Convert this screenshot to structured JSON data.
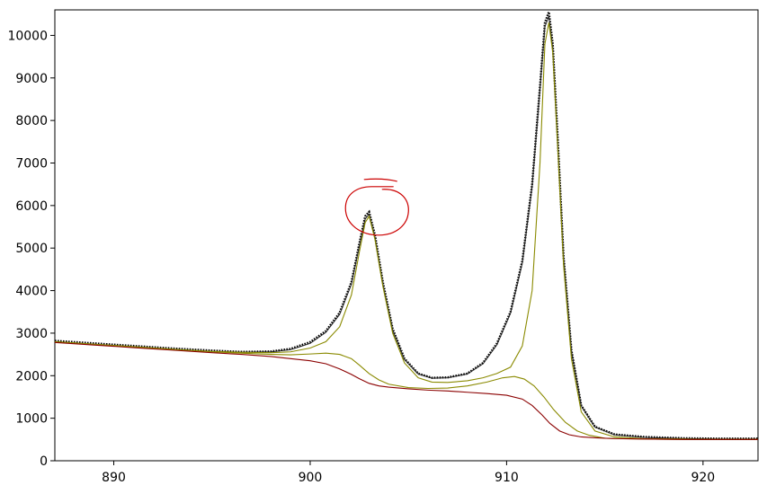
{
  "chart_data": {
    "type": "line",
    "title": "",
    "xlabel": "",
    "ylabel": "",
    "xlim": [
      887,
      922.8
    ],
    "ylim": [
      0,
      10600
    ],
    "x_ticks": [
      890,
      900,
      910,
      920
    ],
    "y_ticks": [
      0,
      1000,
      2000,
      3000,
      4000,
      5000,
      6000,
      7000,
      8000,
      9000,
      10000
    ],
    "grid": false,
    "legend": "none",
    "series": [
      {
        "style": "dotted-data",
        "color": "#000000",
        "x": [
          887,
          889,
          891,
          893,
          895,
          896.5,
          898,
          899,
          900,
          900.8,
          901.5,
          902.1,
          902.5,
          902.8,
          903.0,
          903.3,
          903.7,
          904.2,
          904.8,
          905.5,
          906.2,
          907,
          908,
          908.8,
          909.5,
          910.2,
          910.8,
          911.3,
          911.7,
          911.95,
          912.15,
          912.35,
          912.6,
          912.9,
          913.3,
          913.8,
          914.5,
          915.5,
          917,
          919,
          921,
          922.8
        ],
        "y": [
          2820,
          2760,
          2700,
          2640,
          2590,
          2560,
          2570,
          2630,
          2790,
          3050,
          3480,
          4200,
          5100,
          5750,
          5850,
          5300,
          4200,
          3100,
          2400,
          2050,
          1950,
          1960,
          2050,
          2300,
          2750,
          3500,
          4700,
          6500,
          8800,
          10300,
          10550,
          9800,
          7600,
          4800,
          2600,
          1300,
          800,
          620,
          560,
          530,
          520,
          520
        ]
      },
      {
        "style": "envelope",
        "color": "#222222",
        "x": [
          887,
          889,
          891,
          893,
          895,
          896.5,
          898,
          899,
          900,
          900.8,
          901.5,
          902.1,
          902.5,
          902.8,
          903.0,
          903.3,
          903.7,
          904.2,
          904.8,
          905.5,
          906.2,
          907,
          908,
          908.8,
          909.5,
          910.2,
          910.8,
          911.3,
          911.7,
          911.95,
          912.15,
          912.35,
          912.6,
          912.9,
          913.3,
          913.8,
          914.5,
          915.5,
          917,
          919,
          921,
          922.8
        ],
        "y": [
          2800,
          2740,
          2680,
          2620,
          2570,
          2550,
          2560,
          2610,
          2760,
          3020,
          3440,
          4150,
          5050,
          5680,
          5800,
          5250,
          4150,
          3070,
          2380,
          2040,
          1940,
          1950,
          2040,
          2280,
          2720,
          3470,
          4650,
          6450,
          8750,
          10200,
          10450,
          9700,
          7500,
          4750,
          2580,
          1290,
          790,
          610,
          550,
          520,
          510,
          510
        ]
      },
      {
        "style": "component",
        "color": "#8a8a00",
        "x": [
          887,
          889,
          891,
          893,
          895,
          896.5,
          898,
          899,
          900,
          900.8,
          901.5,
          902.1,
          902.5,
          902.8,
          903.0,
          903.3,
          903.7,
          904.2,
          904.8,
          905.5,
          906.2,
          907,
          908,
          908.8,
          909.5,
          910.2,
          910.8,
          911.3,
          911.7,
          911.95,
          912.15,
          912.35,
          912.6,
          912.9,
          913.3,
          913.8,
          914.5,
          915.5,
          917,
          919,
          921,
          922.8
        ],
        "y": [
          2800,
          2740,
          2680,
          2620,
          2570,
          2550,
          2540,
          2560,
          2650,
          2800,
          3150,
          3900,
          4900,
          5600,
          5750,
          5200,
          4100,
          3000,
          2300,
          1950,
          1850,
          1840,
          1880,
          1950,
          2050,
          2200,
          2700,
          4000,
          7000,
          9800,
          10300,
          9600,
          7400,
          4600,
          2400,
          1150,
          700,
          560,
          520,
          510,
          500,
          500
        ]
      },
      {
        "style": "component",
        "color": "#8a8a00",
        "x": [
          887,
          889,
          891,
          893,
          895,
          896.5,
          898,
          899,
          900,
          900.8,
          901.5,
          902.1,
          902.5,
          903.0,
          903.5,
          904,
          905,
          906,
          907,
          908,
          909,
          909.8,
          910.4,
          910.9,
          911.4,
          911.9,
          912.4,
          913,
          913.6,
          914.2,
          915,
          917,
          919,
          921,
          922.8
        ],
        "y": [
          2800,
          2740,
          2680,
          2620,
          2560,
          2530,
          2500,
          2490,
          2510,
          2530,
          2500,
          2400,
          2250,
          2050,
          1900,
          1800,
          1720,
          1700,
          1710,
          1760,
          1850,
          1950,
          1980,
          1920,
          1760,
          1500,
          1200,
          900,
          700,
          600,
          530,
          510,
          500,
          500,
          500
        ]
      },
      {
        "style": "background",
        "color": "#8b0000",
        "x": [
          887,
          889,
          891,
          893,
          895,
          896.5,
          898,
          899,
          900,
          900.8,
          901.5,
          902.1,
          902.5,
          903.0,
          903.5,
          904,
          905,
          906,
          907,
          908,
          909,
          910,
          910.8,
          911.3,
          911.8,
          912.2,
          912.7,
          913.2,
          913.8,
          914.5,
          915.5,
          917,
          919,
          921,
          922.8
        ],
        "y": [
          2780,
          2720,
          2660,
          2600,
          2540,
          2500,
          2450,
          2400,
          2350,
          2280,
          2160,
          2030,
          1930,
          1820,
          1760,
          1730,
          1690,
          1660,
          1640,
          1610,
          1580,
          1540,
          1450,
          1300,
          1080,
          880,
          700,
          610,
          560,
          540,
          520,
          510,
          500,
          500,
          500
        ]
      }
    ],
    "annotations": [
      {
        "type": "hand-drawn-circle",
        "color": "#cc0000",
        "center_x": 903.4,
        "center_y": 5980
      }
    ]
  }
}
